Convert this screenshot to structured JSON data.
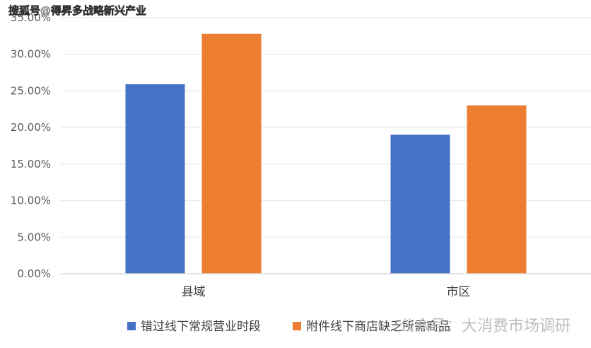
{
  "watermark_top": "搜狐号@得昇多战略新兴产业",
  "watermark_bottom": "公众号：大消费市场调研",
  "chart_data": {
    "type": "bar",
    "categories": [
      "县域",
      "市区"
    ],
    "series": [
      {
        "name": "错过线下常规营业时段",
        "values": [
          25.9,
          19.0
        ],
        "color": "#4472C4"
      },
      {
        "name": "附件线下商店缺乏所需商品",
        "values": [
          32.8,
          23.0
        ],
        "color": "#ED7D31"
      }
    ],
    "ylim": [
      0,
      35
    ],
    "yticks": [
      0,
      5,
      10,
      15,
      20,
      25,
      30,
      35
    ],
    "ytick_labels": [
      "0.00%",
      "5.00%",
      "10.00%",
      "15.00%",
      "20.00%",
      "25.00%",
      "30.00%",
      "35.00%"
    ],
    "grid": true,
    "legend": "bottom"
  }
}
